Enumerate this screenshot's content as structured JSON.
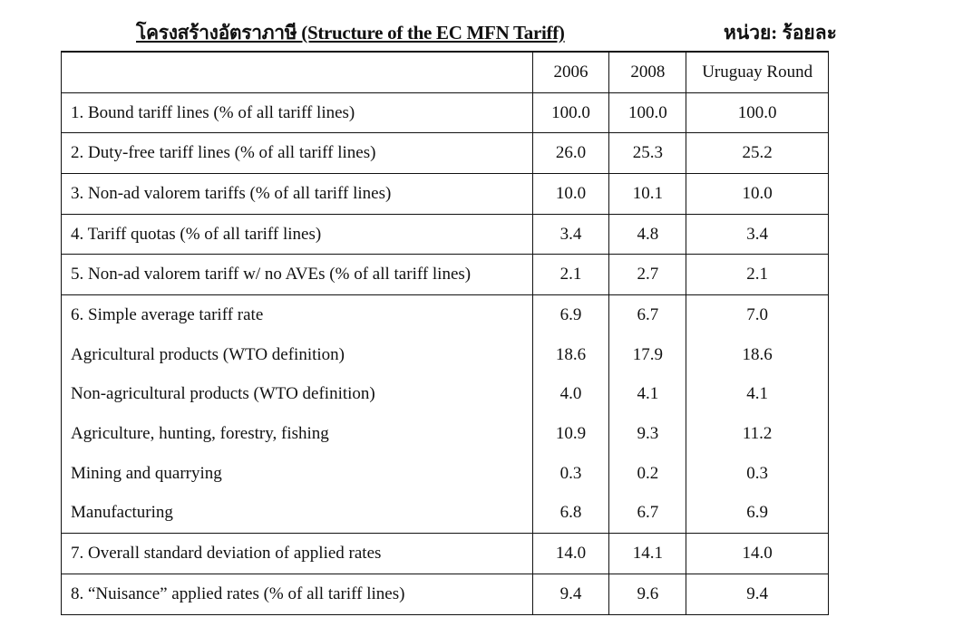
{
  "title": "โครงสร้างอัตราภาษี (Structure of the EC MFN Tariff)",
  "unit": "หน่วย: ร้อยละ",
  "table": {
    "headers": [
      "",
      "2006",
      "2008",
      "Uruguay Round"
    ],
    "rows": [
      {
        "label": "1. Bound tariff lines (% of all tariff lines)",
        "values": [
          "100.0",
          "100.0",
          "100.0"
        ],
        "line": true
      },
      {
        "label": "2. Duty-free tariff lines (% of all tariff lines)",
        "values": [
          "26.0",
          "25.3",
          "25.2"
        ],
        "line": true
      },
      {
        "label": "3. Non-ad valorem tariffs (% of all tariff lines)",
        "values": [
          "10.0",
          "10.1",
          "10.0"
        ],
        "line": true
      },
      {
        "label": "4. Tariff quotas (% of all tariff lines)",
        "values": [
          "3.4",
          "4.8",
          "3.4"
        ],
        "line": true
      },
      {
        "label": "5. Non-ad valorem tariff w/ no AVEs (% of all tariff lines)",
        "values": [
          "2.1",
          "2.7",
          "2.1"
        ],
        "line": true
      },
      {
        "label": "6. Simple average tariff rate",
        "values": [
          "6.9",
          "6.7",
          "7.0"
        ],
        "line": false
      },
      {
        "label": "Agricultural products (WTO definition)",
        "values": [
          "18.6",
          "17.9",
          "18.6"
        ],
        "line": false
      },
      {
        "label": "Non-agricultural products (WTO definition)",
        "values": [
          "4.0",
          "4.1",
          "4.1"
        ],
        "line": false
      },
      {
        "label": "Agriculture, hunting, forestry, fishing",
        "values": [
          "10.9",
          "9.3",
          "11.2"
        ],
        "line": false
      },
      {
        "label": "Mining and quarrying",
        "values": [
          "0.3",
          "0.2",
          "0.3"
        ],
        "line": false
      },
      {
        "label": "Manufacturing",
        "values": [
          "6.8",
          "6.7",
          "6.9"
        ],
        "line": true
      },
      {
        "label": "7. Overall standard deviation of applied rates",
        "values": [
          "14.0",
          "14.1",
          "14.0"
        ],
        "line": true
      },
      {
        "label": "8. “Nuisance” applied rates (% of all tariff lines)",
        "values": [
          "9.4",
          "9.6",
          "9.4"
        ],
        "line": true
      }
    ]
  }
}
